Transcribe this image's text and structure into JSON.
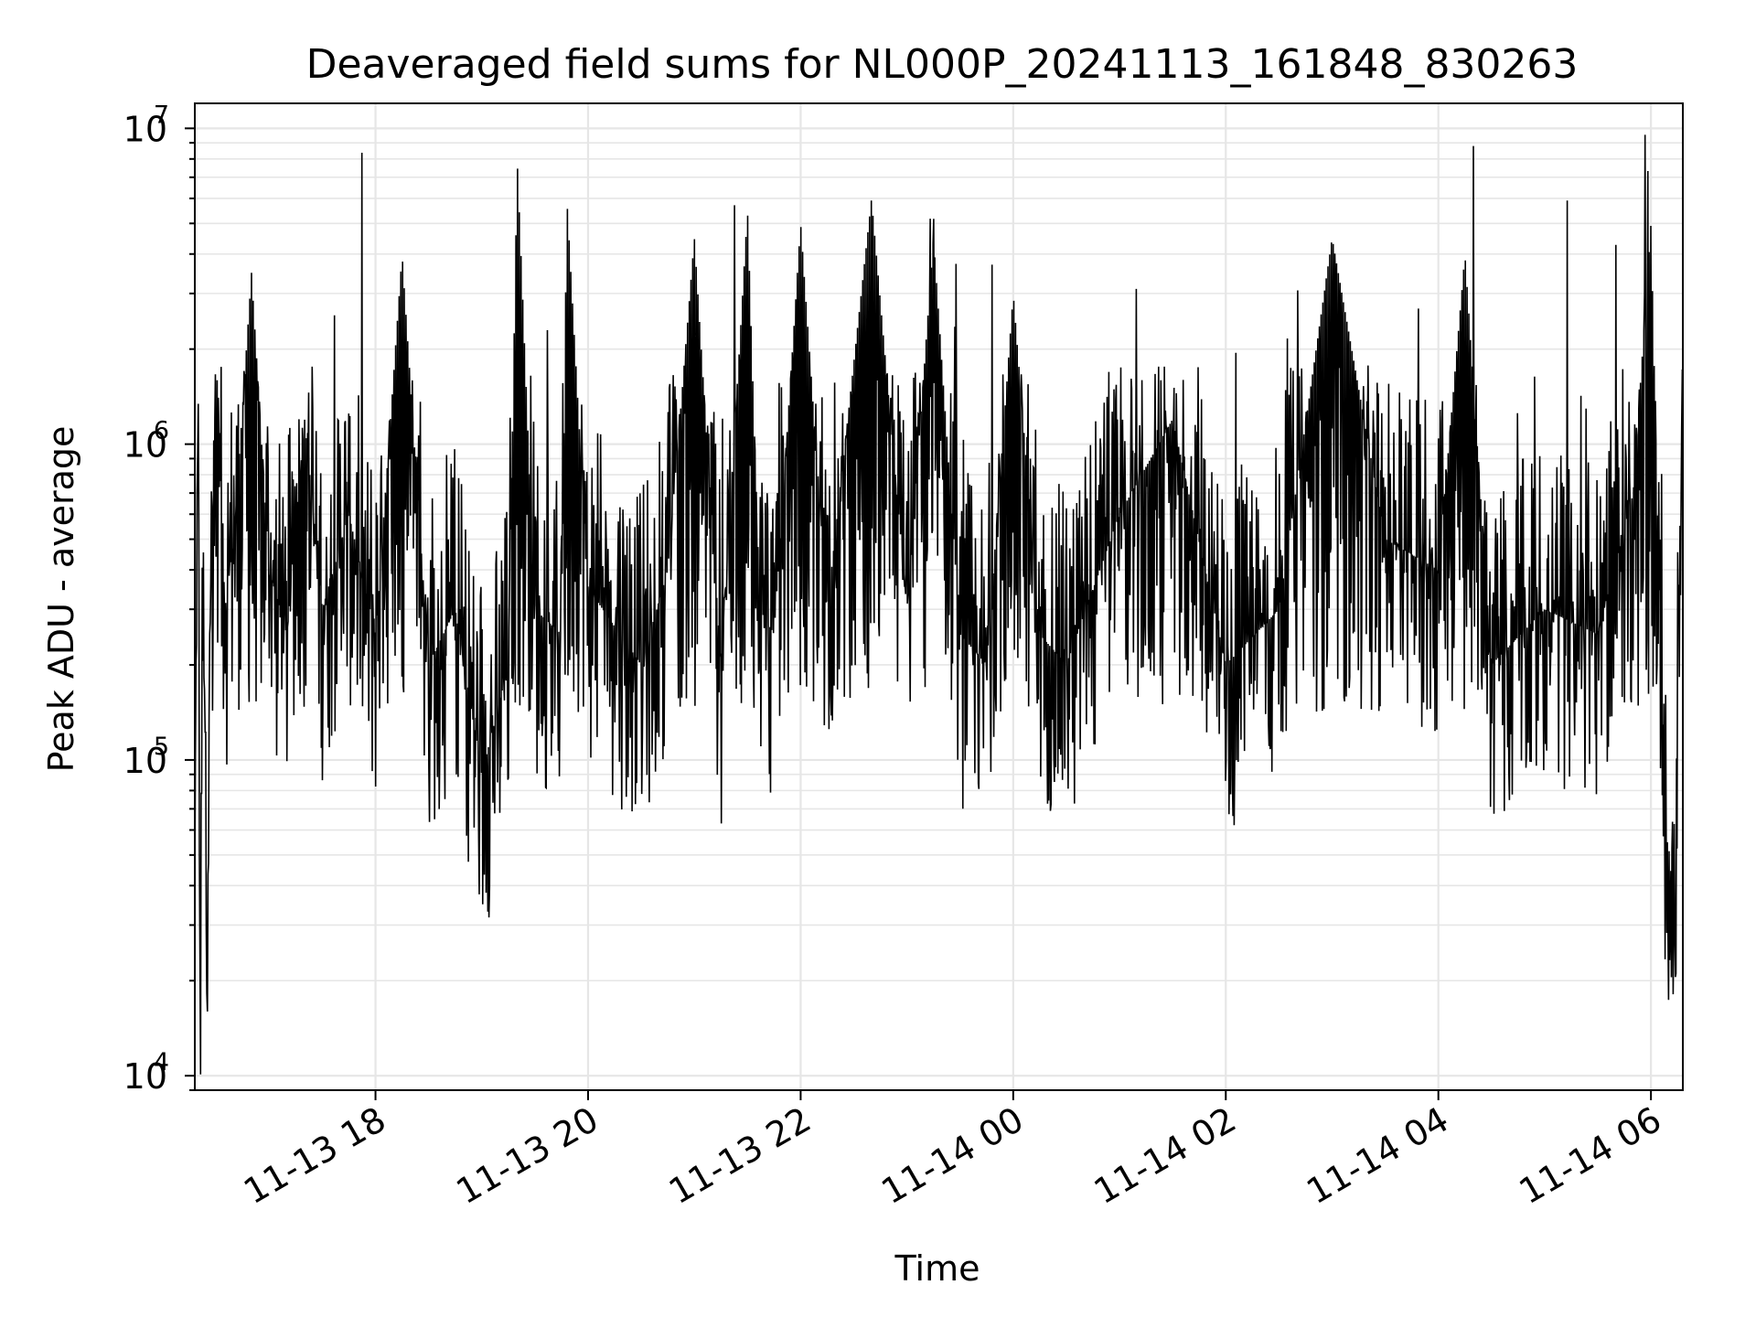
{
  "chart_data": {
    "type": "line",
    "title": "Deaveraged field sums for NL000P_20241113_161848_830263",
    "xlabel": "Time",
    "ylabel": "Peak ADU - average",
    "yscale": "log",
    "ylim": [
      9000,
      12000000
    ],
    "xlim": [
      "2024-11-13 16:18",
      "2024-11-14 06:18"
    ],
    "grid": true,
    "line_color": "#000000",
    "x_ticks": [
      {
        "t": "2024-11-13 18:00",
        "label": "11-13 18"
      },
      {
        "t": "2024-11-13 20:00",
        "label": "11-13 20"
      },
      {
        "t": "2024-11-13 22:00",
        "label": "11-13 22"
      },
      {
        "t": "2024-11-14 00:00",
        "label": "11-14 00"
      },
      {
        "t": "2024-11-14 02:00",
        "label": "11-14 02"
      },
      {
        "t": "2024-11-14 04:00",
        "label": "11-14 04"
      },
      {
        "t": "2024-11-14 06:00",
        "label": "11-14 06"
      }
    ],
    "y_ticks": [
      {
        "v": 10000,
        "base": "10",
        "exp": "4"
      },
      {
        "v": 100000,
        "base": "10",
        "exp": "5"
      },
      {
        "v": 1000000,
        "base": "10",
        "exp": "6"
      },
      {
        "v": 10000000,
        "base": "10",
        "exp": "7"
      }
    ],
    "series": [
      {
        "x": [
          "2024-11-13 16:18",
          "2024-11-13 16:20",
          "2024-11-13 16:21",
          "2024-11-13 16:23",
          "2024-11-13 16:25",
          "2024-11-13 16:27",
          "2024-11-13 16:30",
          "2024-11-13 16:35",
          "2024-11-13 16:40",
          "2024-11-13 16:50",
          "2024-11-13 17:00",
          "2024-11-13 17:10",
          "2024-11-13 17:20",
          "2024-11-13 17:30",
          "2024-11-13 17:45",
          "2024-11-13 18:00",
          "2024-11-13 18:15",
          "2024-11-13 18:30",
          "2024-11-13 18:45",
          "2024-11-13 19:00",
          "2024-11-13 19:15",
          "2024-11-13 19:20",
          "2024-11-13 19:30",
          "2024-11-13 19:45",
          "2024-11-13 19:48",
          "2024-11-13 20:00",
          "2024-11-13 20:30",
          "2024-11-13 20:45",
          "2024-11-13 21:00",
          "2024-11-13 21:15",
          "2024-11-13 21:30",
          "2024-11-13 21:37",
          "2024-11-13 21:45",
          "2024-11-13 22:00",
          "2024-11-13 22:15",
          "2024-11-13 22:40",
          "2024-11-13 23:00",
          "2024-11-13 23:15",
          "2024-11-13 23:30",
          "2024-11-13 23:45",
          "2024-11-14 00:00",
          "2024-11-14 00:15",
          "2024-11-14 00:30",
          "2024-11-14 01:00",
          "2024-11-14 01:30",
          "2024-11-14 02:00",
          "2024-11-14 02:30",
          "2024-11-14 03:00",
          "2024-11-14 03:30",
          "2024-11-14 04:00",
          "2024-11-14 04:15",
          "2024-11-14 04:30",
          "2024-11-14 05:00",
          "2024-11-14 05:30",
          "2024-11-14 05:50",
          "2024-11-14 06:00",
          "2024-11-14 06:05",
          "2024-11-14 06:10",
          "2024-11-14 06:13",
          "2024-11-14 06:15",
          "2024-11-14 06:18"
        ],
        "y": [
          40000,
          1500000,
          16000,
          600000,
          12000,
          450000,
          2000000,
          300000,
          500000,
          3500000,
          400000,
          250000,
          1200000,
          300000,
          600000,
          250000,
          4000000,
          200000,
          300000,
          90000,
          200000,
          8000000,
          300000,
          250000,
          6000000,
          350000,
          200000,
          400000,
          4500000,
          200000,
          5500000,
          300000,
          250000,
          5000000,
          300000,
          6000000,
          300000,
          4500000,
          250000,
          200000,
          3000000,
          250000,
          200000,
          600000,
          1200000,
          200000,
          300000,
          4500000,
          500000,
          400000,
          4000000,
          200000,
          300000,
          250000,
          700000,
          5000000,
          300000,
          25000,
          17000,
          200000,
          1800000
        ]
      }
    ]
  }
}
